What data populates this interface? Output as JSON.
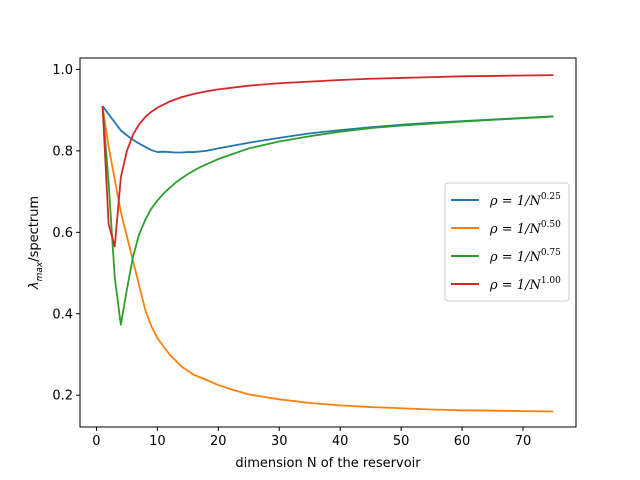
{
  "chart_data": {
    "type": "line",
    "title": "",
    "xlabel": "dimension N of the reservoir",
    "ylabel_main": "λ",
    "ylabel_sub": "max",
    "ylabel_rest": "/spectrum",
    "xlim": [
      -2.7,
      78.7
    ],
    "ylim": [
      0.122,
      1.028
    ],
    "xticks": [
      0,
      10,
      20,
      30,
      40,
      50,
      60,
      70
    ],
    "yticks": [
      0.2,
      0.4,
      0.6,
      0.8,
      1.0
    ],
    "xtick_labels": [
      "0",
      "10",
      "20",
      "30",
      "40",
      "50",
      "60",
      "70"
    ],
    "ytick_labels": [
      "0.2",
      "0.4",
      "0.6",
      "0.8",
      "1.0"
    ],
    "legend_position": "center-right",
    "grid": false,
    "series": [
      {
        "name": "ρ = 1/N",
        "name_exp": "0.25",
        "color": "#1f77b4",
        "x": [
          1,
          2,
          3,
          4,
          5,
          6,
          7,
          8,
          9,
          10,
          11,
          12,
          13,
          14,
          15,
          16,
          18,
          20,
          25,
          30,
          35,
          40,
          45,
          50,
          55,
          60,
          65,
          70,
          75
        ],
        "y": [
          0.91,
          0.89,
          0.87,
          0.85,
          0.838,
          0.827,
          0.818,
          0.81,
          0.802,
          0.797,
          0.798,
          0.797,
          0.796,
          0.796,
          0.797,
          0.797,
          0.8,
          0.806,
          0.82,
          0.832,
          0.843,
          0.851,
          0.858,
          0.864,
          0.869,
          0.873,
          0.877,
          0.881,
          0.885
        ]
      },
      {
        "name": "ρ = 1/N",
        "name_exp": "0.50",
        "color": "#ff7f0e",
        "x": [
          1,
          2,
          3,
          4,
          5,
          6,
          7,
          8,
          9,
          10,
          11,
          12,
          13,
          14,
          15,
          16,
          18,
          20,
          22,
          25,
          30,
          35,
          40,
          45,
          50,
          55,
          60,
          65,
          70,
          75
        ],
        "y": [
          0.91,
          0.81,
          0.73,
          0.65,
          0.59,
          0.53,
          0.47,
          0.41,
          0.37,
          0.34,
          0.32,
          0.3,
          0.285,
          0.27,
          0.26,
          0.25,
          0.238,
          0.225,
          0.215,
          0.202,
          0.19,
          0.181,
          0.175,
          0.171,
          0.168,
          0.165,
          0.163,
          0.162,
          0.161,
          0.16
        ]
      },
      {
        "name": "ρ = 1/N",
        "name_exp": "0.75",
        "color": "#2ca02c",
        "x": [
          1,
          2,
          3,
          4,
          5,
          6,
          7,
          8,
          9,
          10,
          11,
          12,
          13,
          14,
          15,
          17,
          20,
          25,
          30,
          35,
          40,
          45,
          50,
          55,
          60,
          65,
          70,
          75
        ],
        "y": [
          0.91,
          0.72,
          0.49,
          0.373,
          0.46,
          0.54,
          0.595,
          0.63,
          0.658,
          0.678,
          0.695,
          0.709,
          0.722,
          0.733,
          0.743,
          0.76,
          0.78,
          0.806,
          0.823,
          0.836,
          0.847,
          0.856,
          0.862,
          0.867,
          0.872,
          0.876,
          0.88,
          0.884
        ]
      },
      {
        "name": "ρ = 1/N",
        "name_exp": "1.00",
        "color": "#d62728",
        "x": [
          1,
          2,
          3,
          4,
          5,
          6,
          7,
          8,
          9,
          10,
          12,
          14,
          16,
          18,
          20,
          25,
          30,
          35,
          40,
          45,
          50,
          55,
          60,
          65,
          70,
          75
        ],
        "y": [
          0.91,
          0.62,
          0.565,
          0.735,
          0.8,
          0.84,
          0.865,
          0.883,
          0.896,
          0.906,
          0.921,
          0.932,
          0.94,
          0.946,
          0.951,
          0.96,
          0.966,
          0.97,
          0.974,
          0.977,
          0.979,
          0.981,
          0.983,
          0.984,
          0.985,
          0.986
        ]
      }
    ]
  }
}
